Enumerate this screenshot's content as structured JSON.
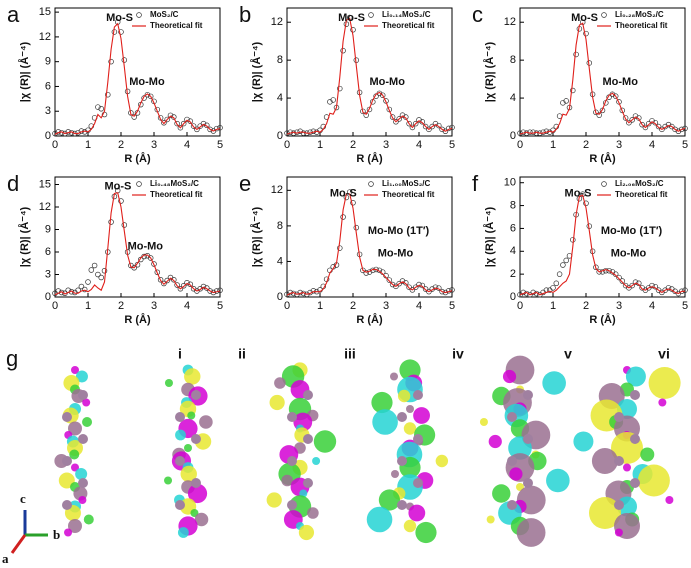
{
  "chart_data": [
    {
      "type": "line",
      "panel_label": "a",
      "xlabel": "R (Å)",
      "ylabel": "|χ (R)| (Å⁻⁴)",
      "x": [
        0,
        0.1,
        0.2,
        0.3,
        0.4,
        0.5,
        0.6,
        0.7,
        0.8,
        0.9,
        1,
        1.1,
        1.2,
        1.3,
        1.4,
        1.5,
        1.6,
        1.7,
        1.8,
        1.9,
        2,
        2.1,
        2.2,
        2.3,
        2.4,
        2.5,
        2.6,
        2.7,
        2.8,
        2.9,
        3,
        3.1,
        3.2,
        3.3,
        3.4,
        3.5,
        3.6,
        3.7,
        3.8,
        3.9,
        4,
        4.1,
        4.2,
        4.3,
        4.4,
        4.5,
        4.6,
        4.7,
        4.8,
        4.9,
        5
      ],
      "xlim": [
        0,
        5
      ],
      "xticks": [
        0,
        1,
        2,
        3,
        4,
        5
      ],
      "ylim": [
        0,
        15.5
      ],
      "yticks": [
        0,
        3,
        6,
        9,
        12,
        15
      ],
      "series": [
        {
          "name": "MoS₂/C",
          "marker": "circle",
          "color": "#333333",
          "values": [
            0.3,
            0.5,
            0.4,
            0.3,
            0.5,
            0.4,
            0.3,
            0.4,
            0.6,
            0.5,
            0.7,
            1.2,
            2.2,
            3.5,
            3.3,
            2.6,
            5.0,
            9.0,
            12.6,
            13.8,
            12.6,
            9.2,
            5.4,
            2.8,
            2.3,
            2.8,
            3.8,
            4.6,
            5.0,
            4.8,
            4.2,
            3.2,
            2.2,
            1.6,
            2.0,
            2.5,
            2.3,
            1.5,
            1.0,
            1.5,
            2.0,
            1.8,
            1.2,
            0.8,
            1.2,
            1.5,
            1.3,
            0.8,
            0.6,
            0.9,
            1.0
          ]
        },
        {
          "name": "Theoretical fit",
          "marker": "line",
          "color": "#e0201b",
          "values": [
            0.2,
            0.4,
            0.5,
            0.3,
            0.4,
            0.5,
            0.3,
            0.3,
            0.5,
            0.6,
            0.5,
            0.8,
            1.5,
            2.6,
            2.2,
            3.0,
            6.5,
            10.5,
            13.2,
            13.6,
            11.8,
            8.4,
            4.8,
            2.6,
            2.4,
            3.0,
            4.0,
            4.8,
            5.1,
            4.8,
            4.0,
            3.0,
            2.0,
            1.5,
            2.0,
            2.4,
            2.2,
            1.4,
            1.0,
            1.5,
            1.9,
            1.7,
            1.1,
            0.8,
            1.1,
            1.4,
            1.2,
            0.8,
            0.6,
            0.8,
            0.9
          ]
        }
      ],
      "annotations": [
        "Mo-S",
        "Mo-Mo"
      ]
    },
    {
      "type": "line",
      "panel_label": "b",
      "xlabel": "R (Å)",
      "ylabel": "|χ (R)| (Å⁻⁴)",
      "x": [
        0,
        0.1,
        0.2,
        0.3,
        0.4,
        0.5,
        0.6,
        0.7,
        0.8,
        0.9,
        1,
        1.1,
        1.2,
        1.3,
        1.4,
        1.5,
        1.6,
        1.7,
        1.8,
        1.9,
        2,
        2.1,
        2.2,
        2.3,
        2.4,
        2.5,
        2.6,
        2.7,
        2.8,
        2.9,
        3,
        3.1,
        3.2,
        3.3,
        3.4,
        3.5,
        3.6,
        3.7,
        3.8,
        3.9,
        4,
        4.1,
        4.2,
        4.3,
        4.4,
        4.5,
        4.6,
        4.7,
        4.8,
        4.9,
        5
      ],
      "xlim": [
        0,
        5
      ],
      "xticks": [
        0,
        1,
        2,
        3,
        4,
        5
      ],
      "ylim": [
        0,
        13.5
      ],
      "yticks": [
        0,
        4,
        8,
        12
      ],
      "series": [
        {
          "name": "Li₀.₁₄MoS₂/C",
          "marker": "circle",
          "color": "#333333",
          "values": [
            0.3,
            0.4,
            0.3,
            0.4,
            0.5,
            0.3,
            0.3,
            0.4,
            0.5,
            0.4,
            0.6,
            1.0,
            2.0,
            3.6,
            3.8,
            3.0,
            5.0,
            9.0,
            11.8,
            12.5,
            11.2,
            8.0,
            4.6,
            2.6,
            2.2,
            2.8,
            3.6,
            4.2,
            4.5,
            4.3,
            3.7,
            2.8,
            2.0,
            1.5,
            1.8,
            2.2,
            2.0,
            1.3,
            0.9,
            1.3,
            1.7,
            1.5,
            1.0,
            0.7,
            1.0,
            1.3,
            1.1,
            0.7,
            0.5,
            0.8,
            0.9
          ]
        },
        {
          "name": "Theoretical fit",
          "marker": "line",
          "color": "#e0201b",
          "values": [
            0.2,
            0.3,
            0.4,
            0.3,
            0.4,
            0.4,
            0.3,
            0.3,
            0.4,
            0.5,
            0.4,
            0.7,
            1.3,
            2.4,
            2.3,
            3.0,
            6.2,
            10.0,
            12.2,
            12.4,
            10.6,
            7.4,
            4.3,
            2.5,
            2.3,
            2.9,
            3.8,
            4.4,
            4.6,
            4.3,
            3.6,
            2.7,
            1.9,
            1.5,
            1.8,
            2.1,
            1.9,
            1.3,
            0.9,
            1.3,
            1.6,
            1.4,
            1.0,
            0.7,
            1.0,
            1.2,
            1.0,
            0.7,
            0.5,
            0.7,
            0.8
          ]
        }
      ],
      "annotations": [
        "Mo-S",
        "Mo-Mo"
      ]
    },
    {
      "type": "line",
      "panel_label": "c",
      "xlabel": "R (Å)",
      "ylabel": "|χ (R)| (Å⁻⁴)",
      "x": [
        0,
        0.1,
        0.2,
        0.3,
        0.4,
        0.5,
        0.6,
        0.7,
        0.8,
        0.9,
        1,
        1.1,
        1.2,
        1.3,
        1.4,
        1.5,
        1.6,
        1.7,
        1.8,
        1.9,
        2,
        2.1,
        2.2,
        2.3,
        2.4,
        2.5,
        2.6,
        2.7,
        2.8,
        2.9,
        3,
        3.1,
        3.2,
        3.3,
        3.4,
        3.5,
        3.6,
        3.7,
        3.8,
        3.9,
        4,
        4.1,
        4.2,
        4.3,
        4.4,
        4.5,
        4.6,
        4.7,
        4.8,
        4.9,
        5
      ],
      "xlim": [
        0,
        5
      ],
      "xticks": [
        0,
        1,
        2,
        3,
        4,
        5
      ],
      "ylim": [
        0,
        13.5
      ],
      "yticks": [
        0,
        4,
        8,
        12
      ],
      "series": [
        {
          "name": "Li₀.₂₈MoS₂/C",
          "marker": "circle",
          "color": "#333333",
          "values": [
            0.3,
            0.4,
            0.3,
            0.4,
            0.4,
            0.3,
            0.3,
            0.4,
            0.5,
            0.4,
            0.6,
            1.0,
            2.1,
            3.5,
            3.7,
            3.0,
            4.8,
            8.6,
            11.3,
            12.0,
            10.8,
            7.7,
            4.4,
            2.5,
            2.2,
            2.7,
            3.5,
            4.1,
            4.4,
            4.2,
            3.6,
            2.7,
            1.9,
            1.4,
            1.7,
            2.1,
            1.9,
            1.2,
            0.9,
            1.3,
            1.6,
            1.4,
            1.0,
            0.7,
            1.0,
            1.2,
            1.0,
            0.7,
            0.5,
            0.7,
            0.8
          ]
        },
        {
          "name": "Theoretical fit",
          "marker": "line",
          "color": "#e0201b",
          "values": [
            0.2,
            0.3,
            0.4,
            0.3,
            0.3,
            0.4,
            0.3,
            0.3,
            0.4,
            0.5,
            0.4,
            0.7,
            1.3,
            2.3,
            2.2,
            2.9,
            5.9,
            9.6,
            11.7,
            11.9,
            10.2,
            7.1,
            4.1,
            2.4,
            2.3,
            2.8,
            3.7,
            4.3,
            4.5,
            4.2,
            3.5,
            2.6,
            1.8,
            1.4,
            1.7,
            2.0,
            1.8,
            1.2,
            0.9,
            1.2,
            1.5,
            1.3,
            0.9,
            0.7,
            0.9,
            1.1,
            1.0,
            0.7,
            0.5,
            0.7,
            0.8
          ]
        }
      ],
      "annotations": [
        "Mo-S",
        "Mo-Mo"
      ]
    },
    {
      "type": "line",
      "panel_label": "d",
      "xlabel": "R (Å)",
      "ylabel": "|χ (R)| (Å⁻⁴)",
      "x": [
        0,
        0.1,
        0.2,
        0.3,
        0.4,
        0.5,
        0.6,
        0.7,
        0.8,
        0.9,
        1,
        1.1,
        1.2,
        1.3,
        1.4,
        1.5,
        1.6,
        1.7,
        1.8,
        1.9,
        2,
        2.1,
        2.2,
        2.3,
        2.4,
        2.5,
        2.6,
        2.7,
        2.8,
        2.9,
        3,
        3.1,
        3.2,
        3.3,
        3.4,
        3.5,
        3.6,
        3.7,
        3.8,
        3.9,
        4,
        4.1,
        4.2,
        4.3,
        4.4,
        4.5,
        4.6,
        4.7,
        4.8,
        4.9,
        5
      ],
      "xlim": [
        0,
        5
      ],
      "xticks": [
        0,
        1,
        2,
        3,
        4,
        5
      ],
      "ylim": [
        0,
        16
      ],
      "yticks": [
        0,
        3,
        6,
        9,
        12,
        15
      ],
      "series": [
        {
          "name": "Li₀.₄₈MoS₂/C",
          "marker": "circle",
          "color": "#333333",
          "values": [
            0.5,
            0.8,
            0.6,
            0.5,
            0.9,
            0.7,
            0.6,
            0.9,
            1.4,
            1.0,
            2.0,
            3.6,
            4.2,
            3.0,
            2.6,
            3.5,
            6.0,
            10.0,
            13.4,
            14.2,
            12.8,
            9.6,
            6.0,
            4.2,
            3.9,
            4.3,
            5.0,
            5.4,
            5.5,
            5.2,
            4.4,
            3.3,
            2.3,
            1.8,
            2.2,
            2.6,
            2.3,
            1.6,
            1.1,
            1.5,
            1.9,
            1.7,
            1.1,
            0.8,
            1.1,
            1.4,
            1.2,
            0.8,
            0.6,
            0.8,
            0.9
          ]
        },
        {
          "name": "Theoretical fit",
          "marker": "line",
          "color": "#e0201b",
          "values": [
            0.3,
            0.5,
            0.7,
            0.4,
            0.6,
            0.8,
            0.5,
            0.5,
            0.8,
            0.9,
            0.7,
            1.0,
            1.6,
            1.2,
            0.9,
            2.0,
            6.5,
            11.2,
            13.8,
            13.9,
            12.0,
            8.8,
            5.6,
            4.0,
            3.9,
            4.5,
            5.2,
            5.6,
            5.6,
            5.2,
            4.3,
            3.2,
            2.2,
            1.7,
            2.1,
            2.5,
            2.2,
            1.5,
            1.1,
            1.4,
            1.8,
            1.6,
            1.1,
            0.8,
            1.0,
            1.3,
            1.1,
            0.8,
            0.6,
            0.7,
            0.8
          ]
        }
      ],
      "annotations": [
        "Mo-S",
        "Mo-Mo"
      ]
    },
    {
      "type": "line",
      "panel_label": "e",
      "xlabel": "R (Å)",
      "ylabel": "|χ (R)| (Å⁻⁴)",
      "x": [
        0,
        0.1,
        0.2,
        0.3,
        0.4,
        0.5,
        0.6,
        0.7,
        0.8,
        0.9,
        1,
        1.1,
        1.2,
        1.3,
        1.4,
        1.5,
        1.6,
        1.7,
        1.8,
        1.9,
        2,
        2.1,
        2.2,
        2.3,
        2.4,
        2.5,
        2.6,
        2.7,
        2.8,
        2.9,
        3,
        3.1,
        3.2,
        3.3,
        3.4,
        3.5,
        3.6,
        3.7,
        3.8,
        3.9,
        4,
        4.1,
        4.2,
        4.3,
        4.4,
        4.5,
        4.6,
        4.7,
        4.8,
        4.9,
        5
      ],
      "xlim": [
        0,
        5
      ],
      "xticks": [
        0,
        1,
        2,
        3,
        4,
        5
      ],
      "ylim": [
        0,
        13.5
      ],
      "yticks": [
        0,
        4,
        8,
        12
      ],
      "series": [
        {
          "name": "Li₁.₀₀MoS₂/C",
          "marker": "circle",
          "color": "#333333",
          "values": [
            0.3,
            0.5,
            0.4,
            0.3,
            0.5,
            0.4,
            0.3,
            0.5,
            0.7,
            0.6,
            0.8,
            1.2,
            2.0,
            3.0,
            3.4,
            3.6,
            5.5,
            9.0,
            11.2,
            11.8,
            10.6,
            7.8,
            4.8,
            3.0,
            2.7,
            2.8,
            3.0,
            3.1,
            3.0,
            2.8,
            2.4,
            1.9,
            1.4,
            1.2,
            1.5,
            1.8,
            1.6,
            1.1,
            0.8,
            1.1,
            1.4,
            1.3,
            0.9,
            0.6,
            0.9,
            1.1,
            1.0,
            0.6,
            0.5,
            0.7,
            0.8
          ]
        },
        {
          "name": "Theoretical fit",
          "marker": "line",
          "color": "#e0201b",
          "values": [
            0.2,
            0.4,
            0.5,
            0.3,
            0.4,
            0.5,
            0.3,
            0.4,
            0.6,
            0.6,
            0.6,
            0.9,
            1.6,
            2.7,
            3.2,
            3.8,
            6.3,
            9.8,
            11.6,
            11.6,
            10.0,
            7.2,
            4.5,
            3.0,
            2.8,
            2.9,
            3.1,
            3.1,
            2.9,
            2.6,
            2.2,
            1.8,
            1.4,
            1.2,
            1.5,
            1.7,
            1.5,
            1.0,
            0.8,
            1.1,
            1.3,
            1.2,
            0.8,
            0.6,
            0.8,
            1.0,
            0.9,
            0.6,
            0.5,
            0.6,
            0.7
          ]
        }
      ],
      "annotations": [
        "Mo-S",
        "Mo-Mo (1T′)",
        "Mo-Mo"
      ]
    },
    {
      "type": "line",
      "panel_label": "f",
      "xlabel": "R (Å)",
      "ylabel": "|χ (R)| (Å⁻⁴)",
      "x": [
        0,
        0.1,
        0.2,
        0.3,
        0.4,
        0.5,
        0.6,
        0.7,
        0.8,
        0.9,
        1,
        1.1,
        1.2,
        1.3,
        1.4,
        1.5,
        1.6,
        1.7,
        1.8,
        1.9,
        2,
        2.1,
        2.2,
        2.3,
        2.4,
        2.5,
        2.6,
        2.7,
        2.8,
        2.9,
        3,
        3.1,
        3.2,
        3.3,
        3.4,
        3.5,
        3.6,
        3.7,
        3.8,
        3.9,
        4,
        4.1,
        4.2,
        4.3,
        4.4,
        4.5,
        4.6,
        4.7,
        4.8,
        4.9,
        5
      ],
      "xlim": [
        0,
        5
      ],
      "xticks": [
        0,
        1,
        2,
        3,
        4,
        5
      ],
      "ylim": [
        0,
        10.5
      ],
      "yticks": [
        0,
        2,
        4,
        6,
        8,
        10
      ],
      "series": [
        {
          "name": "Li₂.₀₆MoS₂/C",
          "marker": "circle",
          "color": "#333333",
          "values": [
            0.2,
            0.4,
            0.3,
            0.2,
            0.4,
            0.3,
            0.2,
            0.4,
            0.6,
            0.6,
            0.8,
            1.2,
            2.0,
            2.8,
            3.2,
            3.6,
            5.0,
            7.2,
            8.6,
            9.0,
            8.2,
            6.2,
            4.0,
            2.6,
            2.2,
            2.2,
            2.3,
            2.3,
            2.2,
            2.0,
            1.7,
            1.4,
            1.0,
            0.8,
            1.0,
            1.3,
            1.2,
            0.8,
            0.6,
            0.8,
            1.0,
            0.9,
            0.6,
            0.4,
            0.6,
            0.8,
            0.7,
            0.5,
            0.3,
            0.5,
            0.6
          ]
        },
        {
          "name": "Theoretical fit",
          "marker": "line",
          "color": "#e0201b",
          "values": [
            0.2,
            0.3,
            0.4,
            0.2,
            0.3,
            0.4,
            0.2,
            0.3,
            0.4,
            0.5,
            0.4,
            0.6,
            0.9,
            1.2,
            1.4,
            2.0,
            4.4,
            7.2,
            8.8,
            8.9,
            7.8,
            5.8,
            3.7,
            2.5,
            2.2,
            2.3,
            2.4,
            2.3,
            2.1,
            1.9,
            1.6,
            1.3,
            1.0,
            0.8,
            1.0,
            1.2,
            1.1,
            0.7,
            0.6,
            0.8,
            0.9,
            0.8,
            0.6,
            0.4,
            0.6,
            0.7,
            0.6,
            0.4,
            0.3,
            0.5,
            0.5
          ]
        }
      ],
      "annotations": [
        "Mo-S",
        "Mo-Mo (1T′)",
        "Mo-Mo"
      ]
    }
  ],
  "panel_g": {
    "label": "g",
    "structures": [
      "i",
      "ii",
      "iii",
      "iv",
      "v",
      "vi"
    ],
    "axes": [
      "c",
      "b",
      "a"
    ]
  }
}
